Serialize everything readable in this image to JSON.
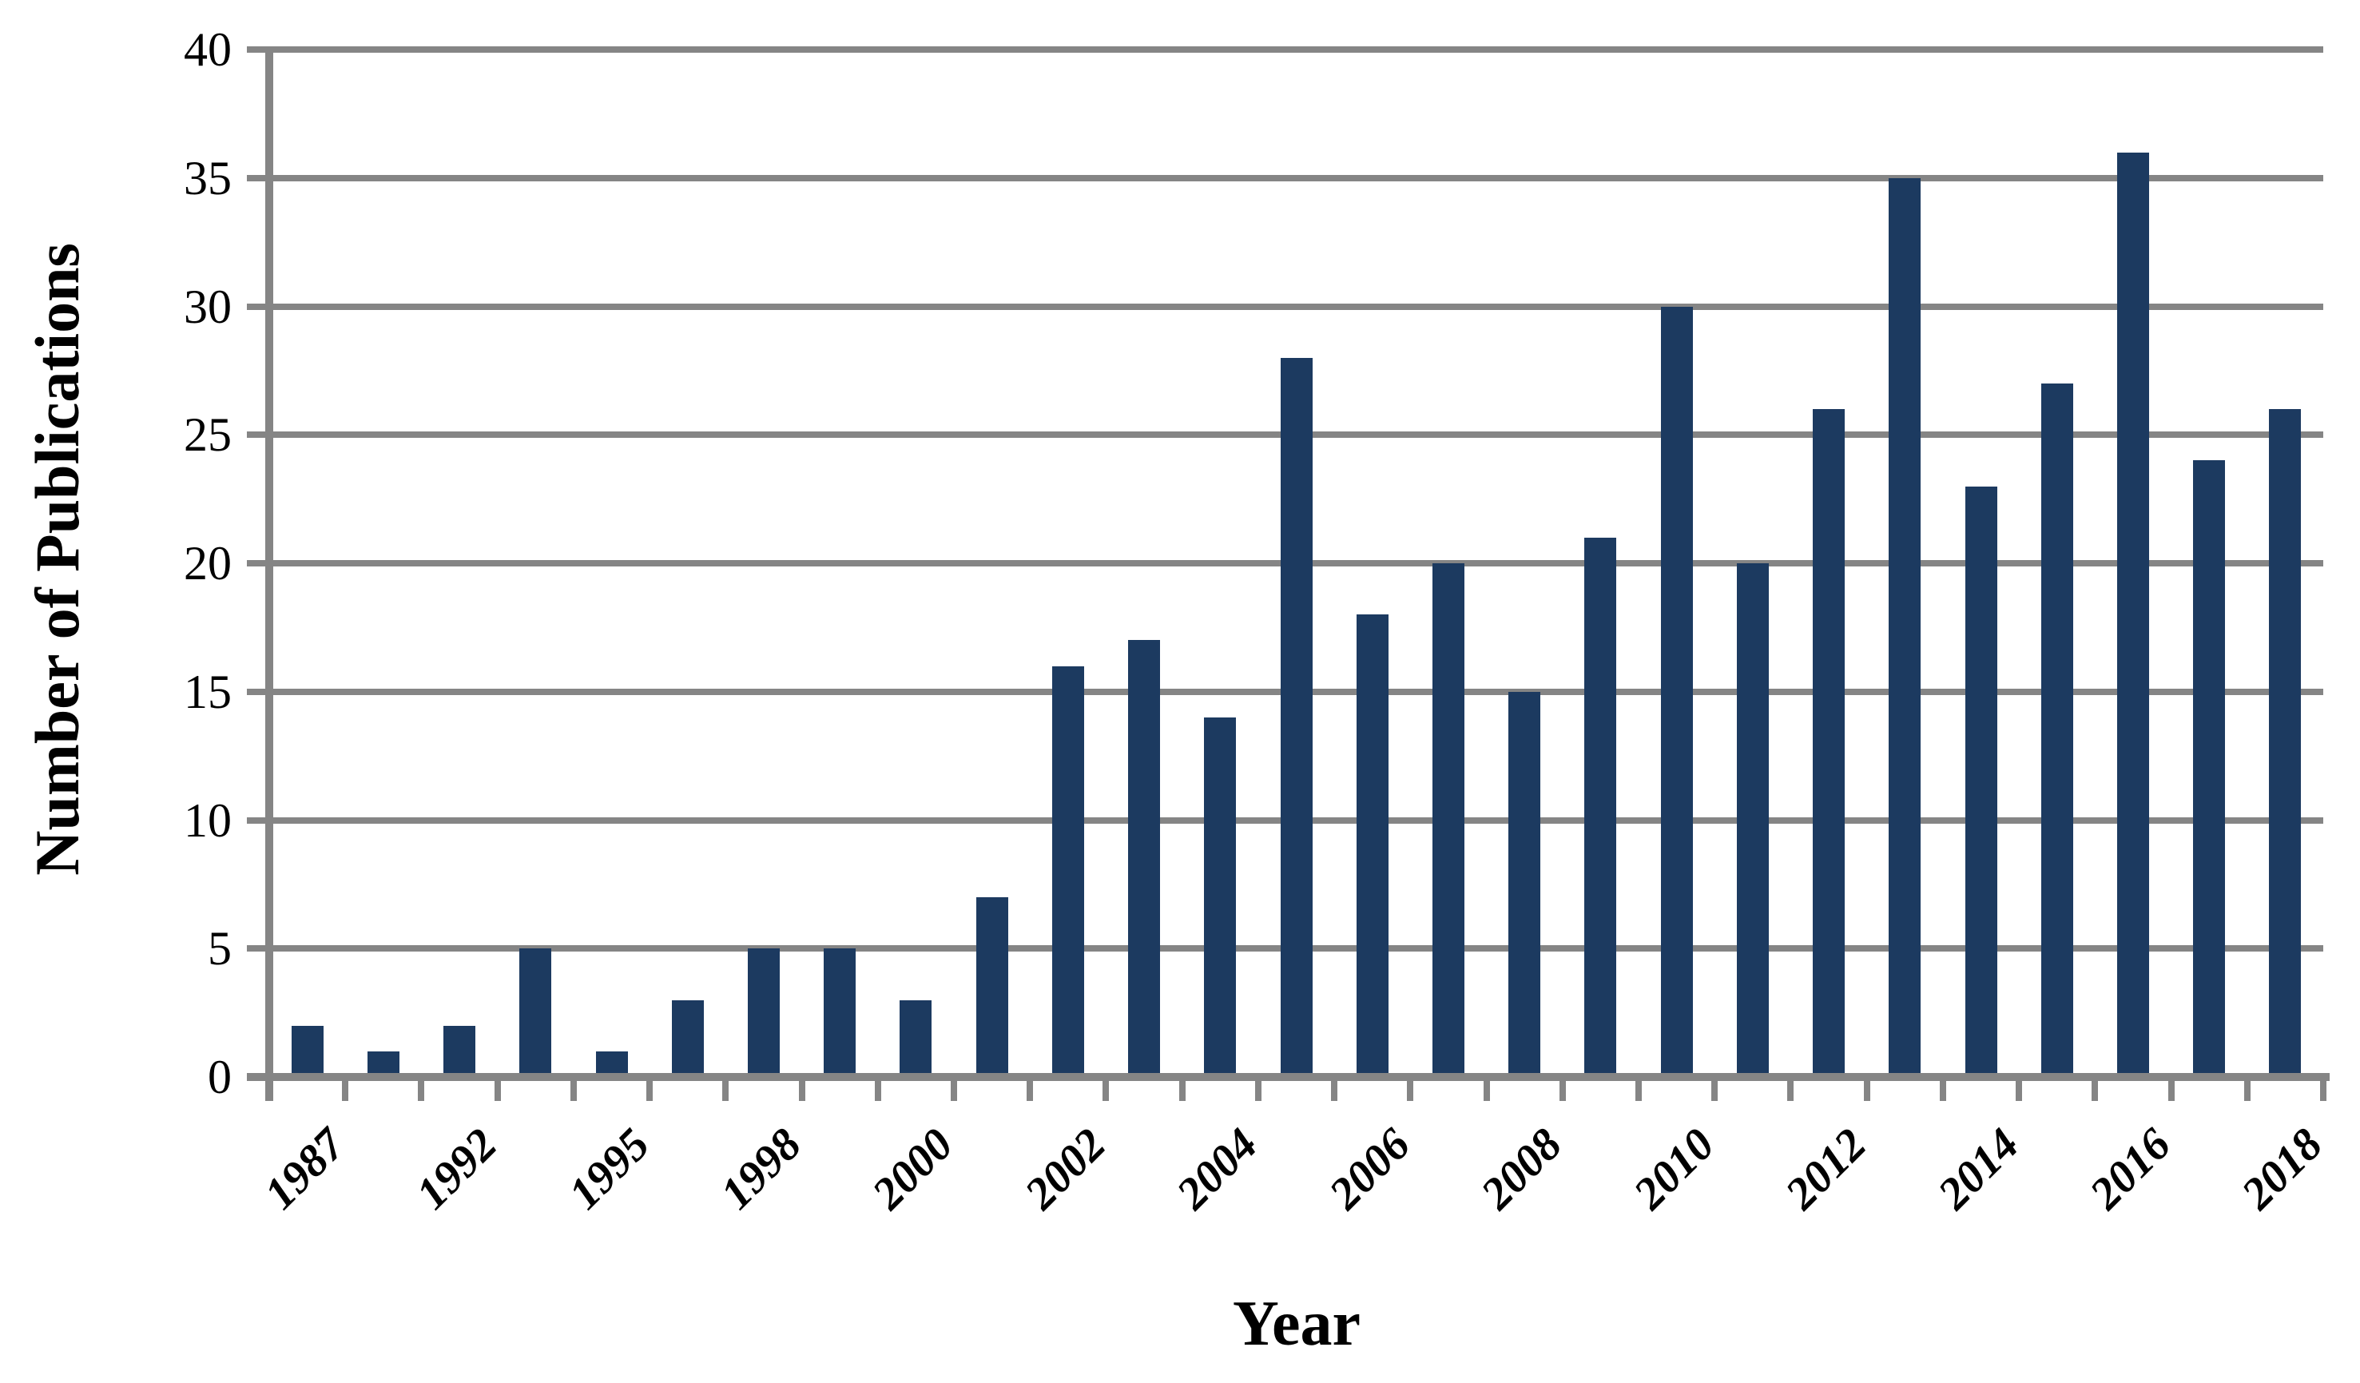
{
  "chart_data": {
    "type": "bar",
    "title": "",
    "xlabel": "Year",
    "ylabel": "Number of Publications",
    "categories": [
      "1987",
      "",
      "1992",
      "",
      "1995",
      "",
      "1998",
      "",
      "2000",
      "",
      "2002",
      "",
      "2004",
      "",
      "2006",
      "",
      "2008",
      "",
      "2010",
      "",
      "2012",
      "",
      "2014",
      "",
      "2016",
      "",
      "2018"
    ],
    "values": [
      2,
      1,
      2,
      5,
      1,
      3,
      5,
      5,
      3,
      7,
      16,
      17,
      14,
      28,
      18,
      20,
      15,
      21,
      30,
      20,
      26,
      35,
      23,
      27,
      36,
      24,
      26
    ],
    "y_ticks": [
      0,
      5,
      10,
      15,
      20,
      25,
      30,
      35,
      40
    ],
    "ylim": [
      0,
      40
    ],
    "grid": true,
    "legend": "none",
    "bar_color": "#1C3A60",
    "axis_color": "#858585",
    "text_color": "#000000"
  }
}
